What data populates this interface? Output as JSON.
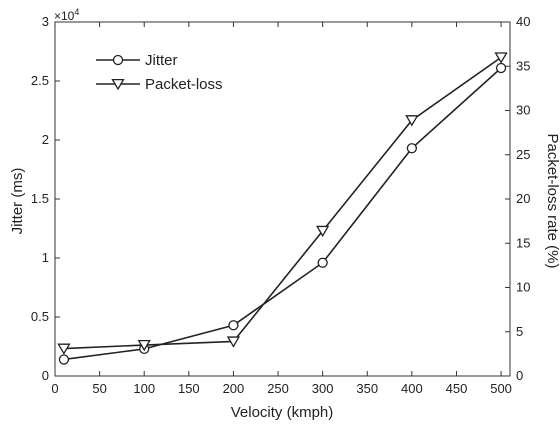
{
  "chart_data": {
    "type": "line",
    "xlabel": "Velocity (kmph)",
    "ylabel_left": "Jitter (ms)",
    "ylabel_right": "Packet-loss rate (%)",
    "left_exponent_base": "×10",
    "left_exponent_power": "4",
    "xlim": [
      0,
      510
    ],
    "ylim_left": [
      0,
      3
    ],
    "ylim_right": [
      0,
      40
    ],
    "xticks": [
      0,
      50,
      100,
      150,
      200,
      250,
      300,
      350,
      400,
      450,
      500
    ],
    "yticks_left": [
      0,
      0.5,
      1,
      1.5,
      2,
      2.5,
      3
    ],
    "yticks_right": [
      0,
      5,
      10,
      15,
      20,
      25,
      30,
      35,
      40
    ],
    "xtick_labels": [
      "0",
      "50",
      "100",
      "150",
      "200",
      "250",
      "300",
      "350",
      "400",
      "450",
      "500"
    ],
    "ytick_labels_left": [
      "0",
      "0.5",
      "1",
      "1.5",
      "2",
      "2.5",
      "3"
    ],
    "ytick_labels_right": [
      "0",
      "5",
      "10",
      "15",
      "20",
      "25",
      "30",
      "35",
      "40"
    ],
    "legend_position": "top-left",
    "series": [
      {
        "name": "Jitter",
        "axis": "left",
        "marker": "circle",
        "color": "#222222",
        "x": [
          10,
          100,
          200,
          300,
          400,
          500
        ],
        "y": [
          0.14,
          0.23,
          0.43,
          0.96,
          1.93,
          2.61
        ]
      },
      {
        "name": "Packet-loss",
        "axis": "right",
        "marker": "triangle-down",
        "color": "#222222",
        "x": [
          10,
          100,
          200,
          300,
          400,
          500
        ],
        "y": [
          3.1,
          3.5,
          3.9,
          16.4,
          28.9,
          36.0
        ]
      }
    ]
  }
}
